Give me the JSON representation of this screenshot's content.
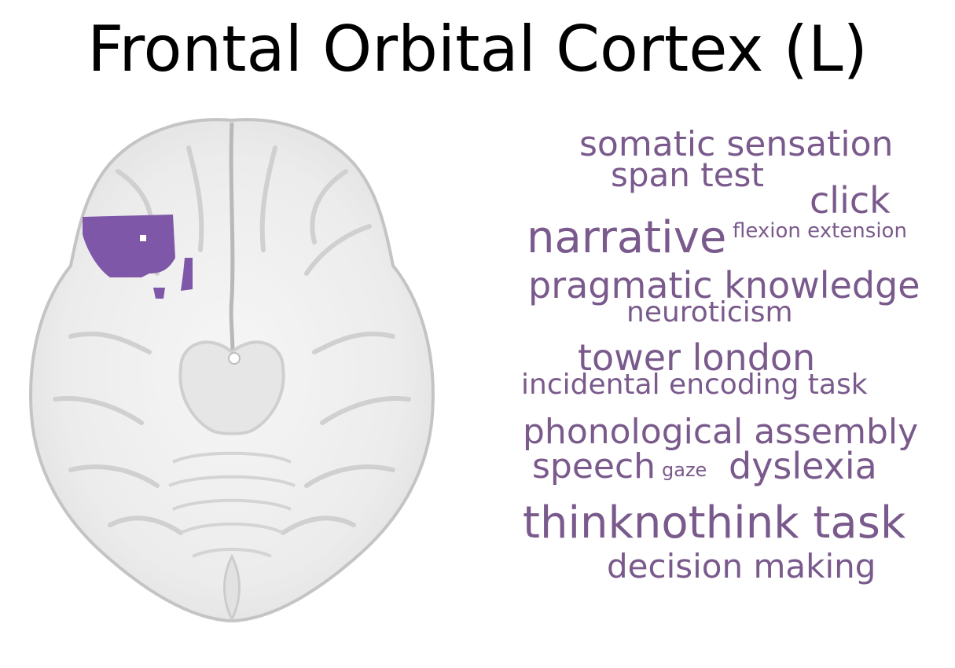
{
  "title": "Frontal Orbital Cortex (L)",
  "colors": {
    "region": "#7e57a8",
    "words": "#7a5a8c",
    "brain_fill": "#efefef",
    "brain_edge": "#c9c9c9",
    "brain_fold": "#d2d2d2"
  },
  "brain_image": {
    "icon": "axial-brain-slice-icon",
    "highlighted_region": "left frontal orbital cortex"
  },
  "word_cloud": [
    {
      "text": "somatic sensation"
    },
    {
      "text": "span test"
    },
    {
      "text": "click"
    },
    {
      "text": "narrative"
    },
    {
      "text": "flexion extension"
    },
    {
      "text": "pragmatic knowledge"
    },
    {
      "text": "neuroticism"
    },
    {
      "text": "tower london"
    },
    {
      "text": "incidental encoding task"
    },
    {
      "text": "phonological assembly"
    },
    {
      "text": "speech"
    },
    {
      "text": "gaze"
    },
    {
      "text": "dyslexia"
    },
    {
      "text": "thinknothink task"
    },
    {
      "text": "decision making"
    }
  ]
}
